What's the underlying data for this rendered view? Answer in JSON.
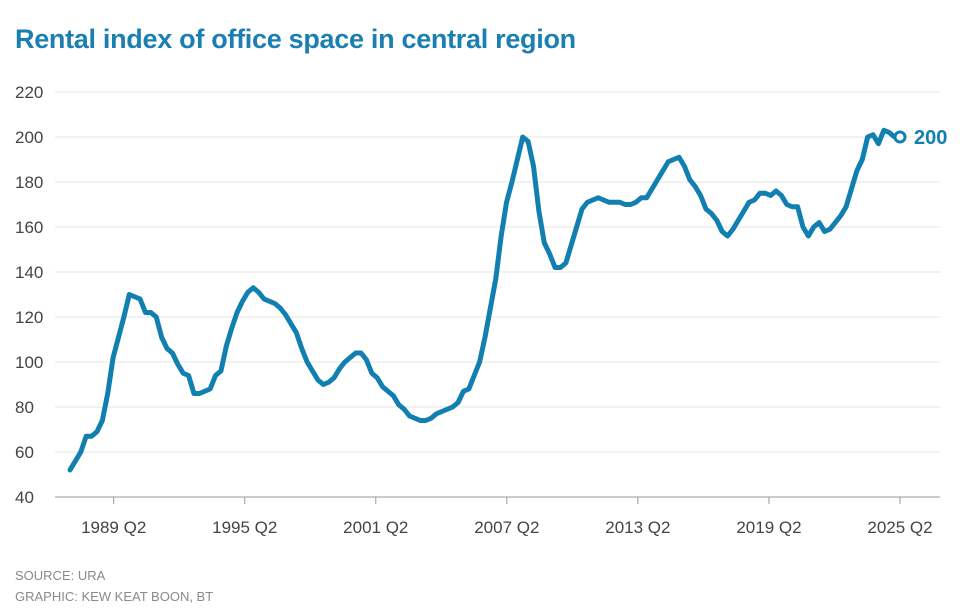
{
  "chart_data": {
    "type": "line",
    "title": "Rental index of office space in central region",
    "xlabel": "",
    "ylabel": "",
    "ylim": [
      40,
      220
    ],
    "yticks": [
      40,
      60,
      80,
      100,
      120,
      140,
      160,
      180,
      200,
      220
    ],
    "xticks": [
      {
        "label": "1989 Q2",
        "x": 1989.25
      },
      {
        "label": "1995 Q2",
        "x": 1995.25
      },
      {
        "label": "2001 Q2",
        "x": 2001.25
      },
      {
        "label": "2007 Q2",
        "x": 2007.25
      },
      {
        "label": "2013 Q2",
        "x": 2013.25
      },
      {
        "label": "2019 Q2",
        "x": 2019.25
      },
      {
        "label": "2025 Q2",
        "x": 2025.25
      }
    ],
    "x_start": 1987.25,
    "x_end": 2025.25,
    "grid": true,
    "end_label": "200",
    "color": "#127fb1",
    "series": [
      {
        "name": "Rental index",
        "values": [
          52,
          56,
          60,
          67,
          67,
          69,
          74,
          86,
          102,
          111,
          120,
          130,
          129,
          128,
          122,
          122,
          120,
          111,
          106,
          104,
          99,
          95,
          94,
          86,
          86,
          87,
          88,
          94,
          96,
          107,
          115,
          122,
          127,
          131,
          133,
          131,
          128,
          127,
          126,
          124,
          121,
          117,
          113,
          106,
          100,
          96,
          92,
          90,
          91,
          93,
          97,
          100,
          102,
          104,
          104,
          101,
          95,
          93,
          89,
          87,
          85,
          81,
          79,
          76,
          75,
          74,
          74,
          75,
          77,
          78,
          79,
          80,
          82,
          87,
          88,
          94,
          100,
          111,
          124,
          137,
          156,
          171,
          180,
          190,
          200,
          198,
          187,
          167,
          153,
          148,
          142,
          142,
          144,
          152,
          160,
          168,
          171,
          172,
          173,
          172,
          171,
          171,
          171,
          170,
          170,
          171,
          173,
          173,
          177,
          181,
          185,
          189,
          190,
          191,
          187,
          181,
          178,
          174,
          168,
          166,
          163,
          158,
          156,
          159,
          163,
          167,
          171,
          172,
          175,
          175,
          174,
          176,
          174,
          170,
          169,
          169,
          160,
          156,
          160,
          162,
          158,
          159,
          162,
          165,
          169,
          177,
          185,
          190,
          200,
          201,
          197,
          203,
          202,
          200,
          200
        ]
      }
    ]
  },
  "footer": {
    "source": "SOURCE: URA",
    "graphic": "GRAPHIC: KEW KEAT BOON, BT"
  }
}
